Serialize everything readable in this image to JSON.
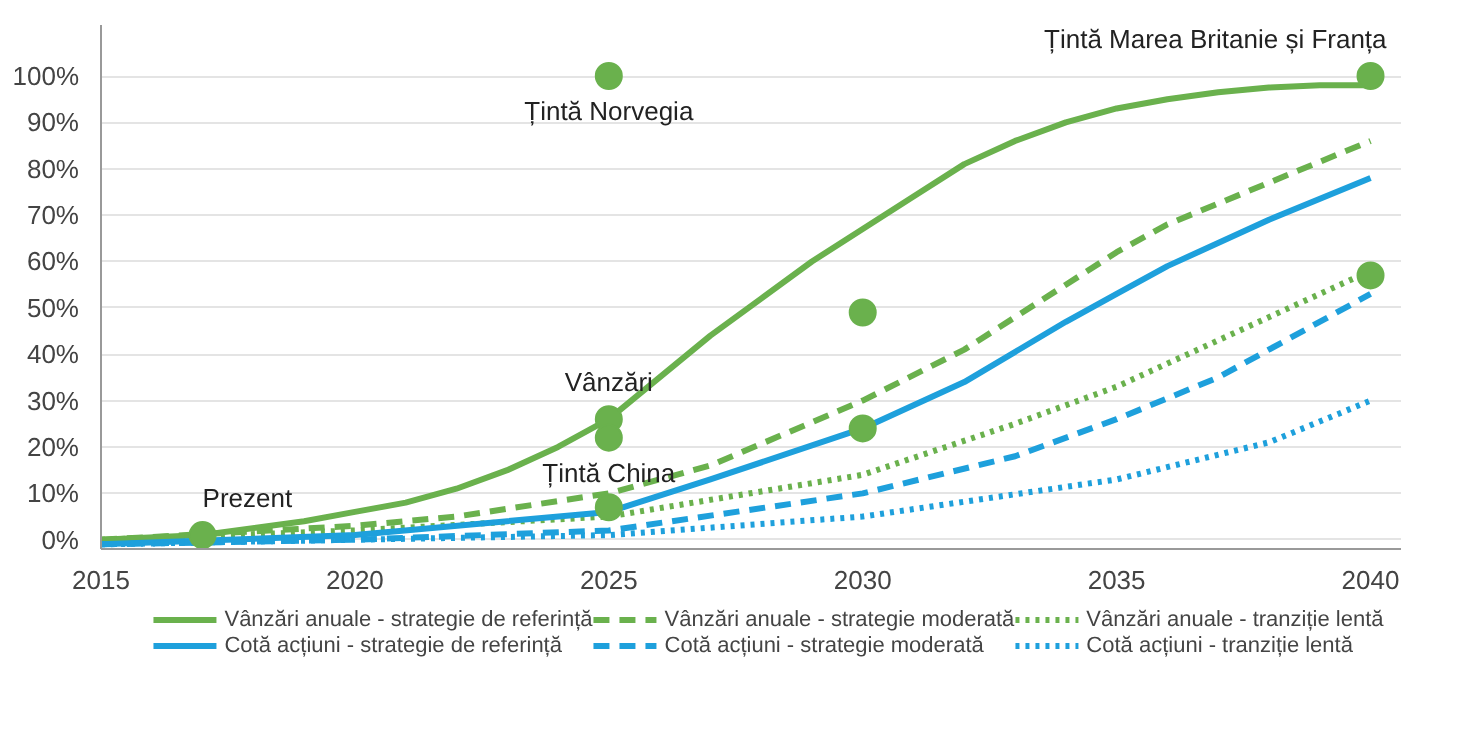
{
  "chart_data": {
    "type": "line",
    "xlim": [
      2015,
      2040.6
    ],
    "ylim": [
      -2,
      111
    ],
    "xticks": [
      2015,
      2020,
      2025,
      2030,
      2035,
      2040
    ],
    "yticks": [
      {
        "value": 0,
        "label": "0%"
      },
      {
        "value": 10,
        "label": "10%"
      },
      {
        "value": 20,
        "label": "20%"
      },
      {
        "value": 30,
        "label": "30%"
      },
      {
        "value": 40,
        "label": "40%"
      },
      {
        "value": 50,
        "label": "50%"
      },
      {
        "value": 60,
        "label": "60%"
      },
      {
        "value": 70,
        "label": "70%"
      },
      {
        "value": 80,
        "label": "80%"
      },
      {
        "value": 90,
        "label": "90%"
      },
      {
        "value": 100,
        "label": "100%"
      }
    ],
    "grid": "y",
    "legend": "bottom",
    "series": [
      {
        "name": "Vânzări anuale - strategie de referință",
        "color": "#6ab14d",
        "line_style": "solid",
        "x": [
          2015,
          2017,
          2019,
          2020,
          2021,
          2022,
          2023,
          2024,
          2025,
          2026,
          2027,
          2028,
          2029,
          2030,
          2031,
          2032,
          2033,
          2034,
          2035,
          2036,
          2037,
          2038,
          2039,
          2040
        ],
        "values": [
          0,
          1,
          4,
          6,
          8,
          11,
          15,
          20,
          26,
          35,
          44,
          52,
          60,
          67,
          74,
          81,
          86,
          90,
          93,
          95,
          96.5,
          97.5,
          98,
          98
        ]
      },
      {
        "name": "Vânzări anuale - strategie moderată",
        "color": "#6ab14d",
        "line_style": "dashed",
        "x": [
          2015,
          2020,
          2022,
          2025,
          2027,
          2030,
          2032,
          2034,
          2035,
          2036,
          2038,
          2040
        ],
        "values": [
          0,
          3,
          5,
          10,
          16,
          30,
          41,
          55,
          62,
          68,
          77,
          86
        ]
      },
      {
        "name": "Vânzări anuale - tranziție lentă",
        "color": "#6ab14d",
        "line_style": "dotted",
        "x": [
          2015,
          2020,
          2025,
          2030,
          2033,
          2035,
          2037,
          2040
        ],
        "values": [
          0,
          2,
          5,
          14,
          25,
          33,
          43,
          58
        ]
      },
      {
        "name": "Cotă acțiuni - strategie de referință",
        "color": "#1ea0dc",
        "line_style": "solid",
        "x": [
          2015,
          2020,
          2025,
          2027,
          2030,
          2032,
          2034,
          2035,
          2036,
          2038,
          2040
        ],
        "values": [
          -1,
          1,
          6,
          13,
          24,
          34,
          47,
          53,
          59,
          69,
          78
        ]
      },
      {
        "name": "Cotă acțiuni - strategie moderată",
        "color": "#1ea0dc",
        "line_style": "dashed",
        "x": [
          2015,
          2020,
          2025,
          2030,
          2033,
          2035,
          2037,
          2040
        ],
        "values": [
          -1,
          0,
          2,
          10,
          18,
          26,
          35,
          53
        ]
      },
      {
        "name": "Cotă acțiuni - tranziție lentă",
        "color": "#1ea0dc",
        "line_style": "dotted",
        "x": [
          2015,
          2020,
          2025,
          2030,
          2035,
          2038,
          2040
        ],
        "values": [
          -1,
          0,
          1,
          5,
          13,
          21,
          30
        ]
      },
      {
        "type": "scatter",
        "marker": "circle",
        "color": "#6ab14d",
        "x": [
          2017,
          2025,
          2025,
          2025,
          2025,
          2030,
          2030,
          2040,
          2040
        ],
        "values": [
          1,
          100,
          26,
          22,
          7,
          49,
          24,
          100,
          57
        ]
      }
    ],
    "annotations": [
      {
        "text": "Prezent",
        "x": 2017,
        "y": 1
      },
      {
        "text": "Țintă Norvegia",
        "x": 2025,
        "y": 100
      },
      {
        "text": "Vânzări",
        "x": 2025,
        "y": 26
      },
      {
        "text": "Țintă China",
        "x": 2025,
        "y": 22
      },
      {
        "text": "Țintă Marea Britanie și Franța",
        "x": 2040,
        "y": 100
      }
    ]
  }
}
